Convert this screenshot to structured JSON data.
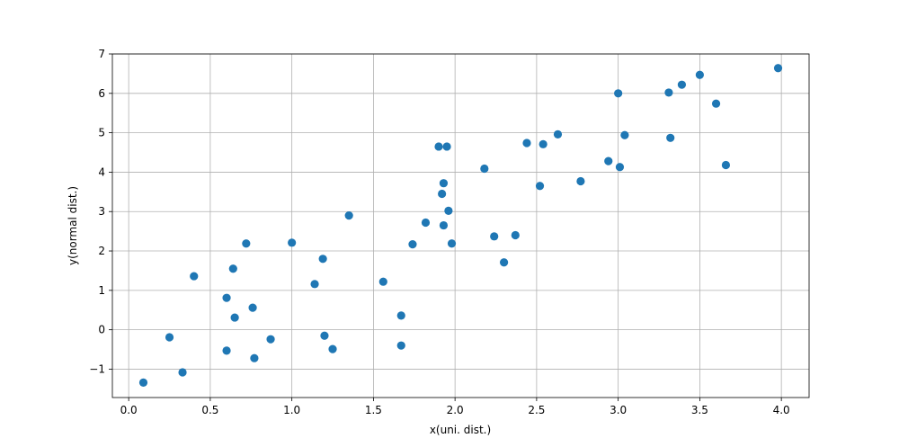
{
  "chart_data": {
    "type": "scatter",
    "title": "",
    "xlabel": "x(uni. dist.)",
    "ylabel": "y(normal dist.)",
    "xlim": [
      -0.1,
      4.17
    ],
    "ylim": [
      -1.72,
      7.0
    ],
    "xticks": [
      0.0,
      0.5,
      1.0,
      1.5,
      2.0,
      2.5,
      3.0,
      3.5,
      4.0
    ],
    "xtick_labels": [
      "0.0",
      "0.5",
      "1.0",
      "1.5",
      "2.0",
      "2.5",
      "3.0",
      "3.5",
      "4.0"
    ],
    "yticks": [
      -1,
      0,
      1,
      2,
      3,
      4,
      5,
      6,
      7
    ],
    "ytick_labels": [
      "−1",
      "0",
      "1",
      "2",
      "3",
      "4",
      "5",
      "6",
      "7"
    ],
    "grid": true,
    "marker_color": "#1f77b4",
    "points": [
      {
        "x": 0.09,
        "y": -1.34
      },
      {
        "x": 0.25,
        "y": -0.19
      },
      {
        "x": 0.33,
        "y": -1.08
      },
      {
        "x": 0.4,
        "y": 1.36
      },
      {
        "x": 0.6,
        "y": 0.81
      },
      {
        "x": 0.6,
        "y": -0.53
      },
      {
        "x": 0.64,
        "y": 1.55
      },
      {
        "x": 0.65,
        "y": 0.31
      },
      {
        "x": 0.72,
        "y": 2.19
      },
      {
        "x": 0.76,
        "y": 0.56
      },
      {
        "x": 0.77,
        "y": -0.72
      },
      {
        "x": 0.87,
        "y": -0.24
      },
      {
        "x": 1.0,
        "y": 2.21
      },
      {
        "x": 1.14,
        "y": 1.16
      },
      {
        "x": 1.19,
        "y": 1.8
      },
      {
        "x": 1.2,
        "y": -0.15
      },
      {
        "x": 1.25,
        "y": -0.49
      },
      {
        "x": 1.35,
        "y": 2.9
      },
      {
        "x": 1.56,
        "y": 1.22
      },
      {
        "x": 1.67,
        "y": 0.36
      },
      {
        "x": 1.67,
        "y": -0.4
      },
      {
        "x": 1.74,
        "y": 2.17
      },
      {
        "x": 1.82,
        "y": 2.72
      },
      {
        "x": 1.9,
        "y": 4.65
      },
      {
        "x": 1.92,
        "y": 3.45
      },
      {
        "x": 1.93,
        "y": 3.72
      },
      {
        "x": 1.93,
        "y": 2.65
      },
      {
        "x": 1.95,
        "y": 4.65
      },
      {
        "x": 1.96,
        "y": 3.02
      },
      {
        "x": 1.98,
        "y": 2.19
      },
      {
        "x": 2.18,
        "y": 4.09
      },
      {
        "x": 2.24,
        "y": 2.37
      },
      {
        "x": 2.3,
        "y": 1.71
      },
      {
        "x": 2.37,
        "y": 2.4
      },
      {
        "x": 2.44,
        "y": 4.74
      },
      {
        "x": 2.52,
        "y": 3.65
      },
      {
        "x": 2.54,
        "y": 4.71
      },
      {
        "x": 2.63,
        "y": 4.96
      },
      {
        "x": 2.77,
        "y": 3.77
      },
      {
        "x": 2.94,
        "y": 4.28
      },
      {
        "x": 3.0,
        "y": 6.0
      },
      {
        "x": 3.01,
        "y": 4.13
      },
      {
        "x": 3.04,
        "y": 4.94
      },
      {
        "x": 3.31,
        "y": 6.02
      },
      {
        "x": 3.32,
        "y": 4.87
      },
      {
        "x": 3.39,
        "y": 6.22
      },
      {
        "x": 3.5,
        "y": 6.47
      },
      {
        "x": 3.6,
        "y": 5.74
      },
      {
        "x": 3.66,
        "y": 4.18
      },
      {
        "x": 3.98,
        "y": 6.64
      }
    ]
  }
}
